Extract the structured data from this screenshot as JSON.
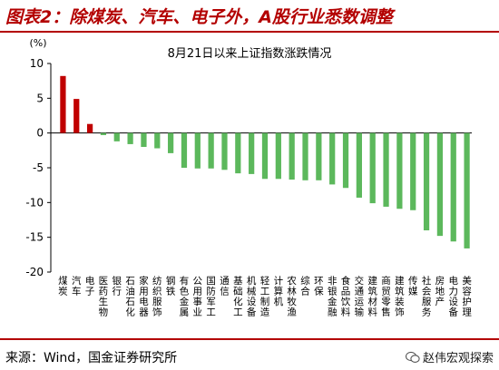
{
  "header": {
    "title": "图表2：除煤炭、汽车、电子外，A股行业悉数调整"
  },
  "footer": {
    "source": "来源：Wind，国金证券研究所",
    "watermark": "赵伟宏观探索"
  },
  "colors": {
    "positive": "#c00000",
    "negative": "#5cb85c",
    "accent": "#b30000"
  },
  "chart_data": {
    "type": "bar",
    "title": "8月21日以来上证指数涨跌情况",
    "unit_label": "(%)",
    "ylim": [
      -20,
      10
    ],
    "yticks": [
      10,
      5,
      0,
      -5,
      -10,
      -15,
      -20
    ],
    "grid": false,
    "legend": "none",
    "categories": [
      "煤炭",
      "汽车",
      "电子",
      "医药生物",
      "银行",
      "石油石化",
      "家用电器",
      "纺织服饰",
      "钢铁",
      "有色金属",
      "公用事业",
      "国防军工",
      "通信",
      "基础化工",
      "机械设备",
      "轻工制造",
      "计算机",
      "农林牧渔",
      "综合",
      "环保",
      "非银金融",
      "食品饮料",
      "交通运输",
      "建筑材料",
      "商贸零售",
      "建筑装饰",
      "传媒",
      "社会服务",
      "房地产",
      "电力设备",
      "美容护理"
    ],
    "values": [
      8.2,
      4.9,
      1.3,
      -0.3,
      -1.2,
      -1.6,
      -2.0,
      -2.2,
      -2.9,
      -5.0,
      -5.1,
      -5.1,
      -5.3,
      -5.8,
      -5.9,
      -6.6,
      -6.6,
      -6.7,
      -6.8,
      -6.8,
      -7.4,
      -7.9,
      -9.3,
      -10.1,
      -10.6,
      -10.9,
      -11.1,
      -14.0,
      -14.8,
      -15.6,
      -16.6
    ]
  }
}
